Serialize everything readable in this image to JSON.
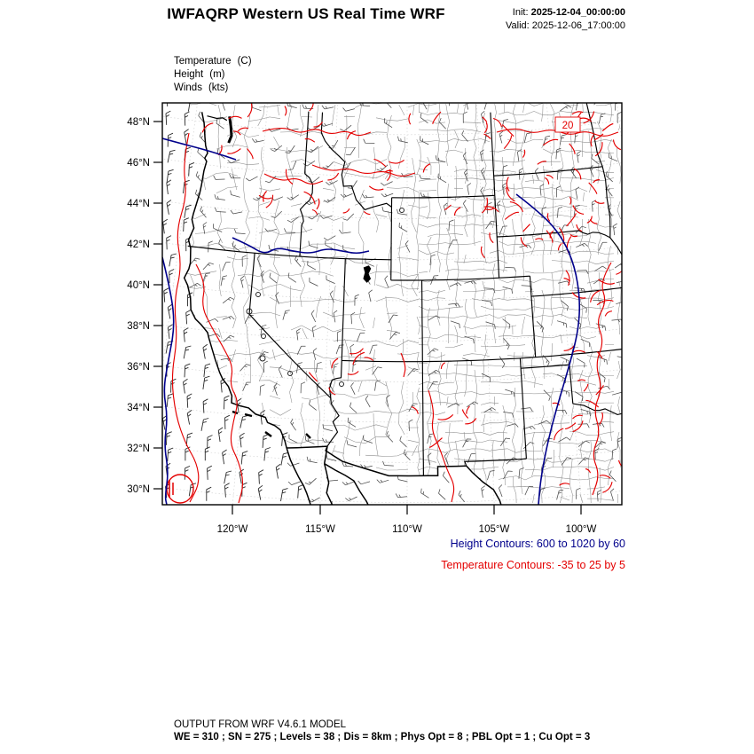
{
  "header": {
    "title": "IWFAQRP Western US Real Time WRF",
    "init_label": "Init:",
    "init_value": "2025-12-04_00:00:00",
    "valid_label": "Valid:",
    "valid_value": "2025-12-06_17:00:00"
  },
  "params": [
    {
      "name": "Temperature",
      "unit": "(C)"
    },
    {
      "name": "Height",
      "unit": "(m)"
    },
    {
      "name": "Winds",
      "unit": "(kts)"
    }
  ],
  "map": {
    "lat_ticks": [
      "48°N",
      "46°N",
      "44°N",
      "42°N",
      "40°N",
      "38°N",
      "36°N",
      "34°N",
      "32°N",
      "30°N"
    ],
    "lon_ticks": [
      "120°W",
      "115°W",
      "110°W",
      "105°W",
      "100°W"
    ],
    "contour_label": "20"
  },
  "legend": {
    "height_contours": "Height Contours: 600 to 1020 by 60",
    "temperature_contours": "Temperature Contours: -35 to 25 by 5"
  },
  "footer": {
    "line1": "OUTPUT FROM WRF V4.6.1 MODEL",
    "line2": "WE = 310 ; SN = 275 ; Levels = 38 ; Dis = 8km ; Phys Opt = 8 ; PBL Opt = 1 ; Cu Opt = 3"
  },
  "colors": {
    "height_contour": "#00008b",
    "temperature_contour": "#e40000",
    "county_line": "#8d8d8d",
    "state_line": "#000000"
  }
}
